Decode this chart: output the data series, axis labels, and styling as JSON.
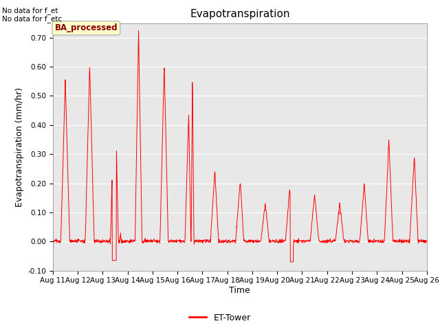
{
  "title": "Evapotranspiration",
  "ylabel": "Evapotranspiration (mm/hr)",
  "xlabel": "Time",
  "xlim_start": 11,
  "xlim_end": 26,
  "ylim": [
    -0.1,
    0.75
  ],
  "yticks": [
    -0.1,
    0.0,
    0.1,
    0.2,
    0.3,
    0.4,
    0.5,
    0.6,
    0.7
  ],
  "xtick_labels": [
    "Aug 11",
    "Aug 12",
    "Aug 13",
    "Aug 14",
    "Aug 15",
    "Aug 16",
    "Aug 17",
    "Aug 18",
    "Aug 19",
    "Aug 20",
    "Aug 21",
    "Aug 22",
    "Aug 23",
    "Aug 24",
    "Aug 25",
    "Aug 26"
  ],
  "annotation_text": "No data for f_et\nNo data for f_etc",
  "legend_box_text": "BA_processed",
  "legend_line_label": "ET-Tower",
  "line_color": "red",
  "bg_color": "#e8e8e8",
  "title_fontsize": 11,
  "label_fontsize": 9,
  "tick_fontsize": 7.5
}
